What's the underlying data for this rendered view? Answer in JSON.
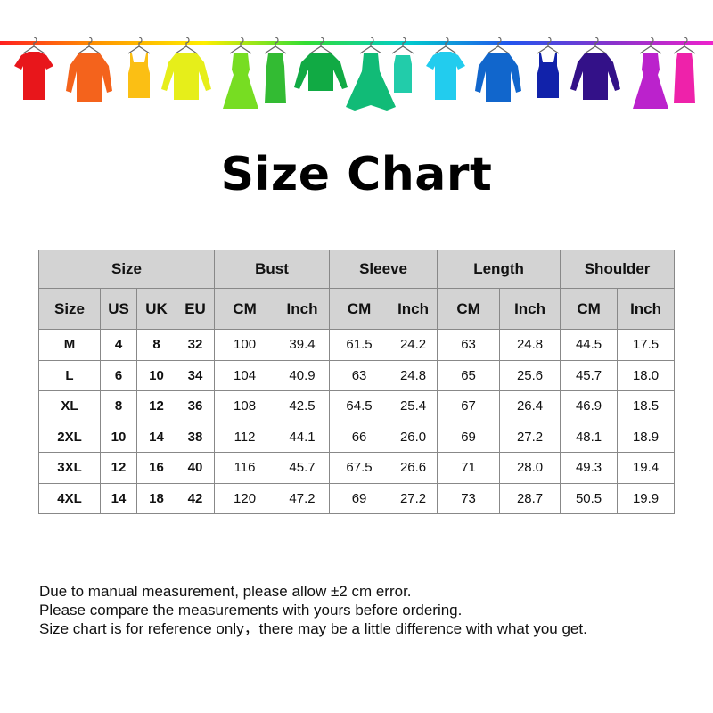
{
  "banner": {
    "line_colors": [
      "#ff2020",
      "#ff9900",
      "#ffee00",
      "#33dd33",
      "#00cccc",
      "#2255ee",
      "#8833cc",
      "#ee22cc"
    ],
    "garments": [
      {
        "type": "tshirt",
        "color": "#e8161b"
      },
      {
        "type": "jacket",
        "color": "#f4631c"
      },
      {
        "type": "tank",
        "color": "#fbbf14"
      },
      {
        "type": "sweater",
        "color": "#e6ee1a"
      },
      {
        "type": "dress",
        "color": "#77dd22"
      },
      {
        "type": "tankdress",
        "color": "#33bb33"
      },
      {
        "type": "longsleeve",
        "color": "#11aa44"
      },
      {
        "type": "gown",
        "color": "#11bb77"
      },
      {
        "type": "top",
        "color": "#22ccaa"
      },
      {
        "type": "tshirt",
        "color": "#22ccee"
      },
      {
        "type": "jacket",
        "color": "#1166cc"
      },
      {
        "type": "tank",
        "color": "#1122aa"
      },
      {
        "type": "sweater",
        "color": "#331188"
      },
      {
        "type": "dress",
        "color": "#bb22cc"
      },
      {
        "type": "tankdress",
        "color": "#ee22aa"
      }
    ]
  },
  "title": "Size Chart",
  "table": {
    "groups": [
      {
        "label": "Size",
        "span": 4
      },
      {
        "label": "Bust",
        "span": 2
      },
      {
        "label": "Sleeve",
        "span": 2
      },
      {
        "label": "Length",
        "span": 2
      },
      {
        "label": "Shoulder",
        "span": 2
      }
    ],
    "columns": [
      "Size",
      "US",
      "UK",
      "EU",
      "CM",
      "Inch",
      "CM",
      "Inch",
      "CM",
      "Inch",
      "CM",
      "Inch"
    ],
    "rows": [
      [
        "M",
        "4",
        "8",
        "32",
        "100",
        "39.4",
        "61.5",
        "24.2",
        "63",
        "24.8",
        "44.5",
        "17.5"
      ],
      [
        "L",
        "6",
        "10",
        "34",
        "104",
        "40.9",
        "63",
        "24.8",
        "65",
        "25.6",
        "45.7",
        "18.0"
      ],
      [
        "XL",
        "8",
        "12",
        "36",
        "108",
        "42.5",
        "64.5",
        "25.4",
        "67",
        "26.4",
        "46.9",
        "18.5"
      ],
      [
        "2XL",
        "10",
        "14",
        "38",
        "112",
        "44.1",
        "66",
        "26.0",
        "69",
        "27.2",
        "48.1",
        "18.9"
      ],
      [
        "3XL",
        "12",
        "16",
        "40",
        "116",
        "45.7",
        "67.5",
        "26.6",
        "71",
        "28.0",
        "49.3",
        "19.4"
      ],
      [
        "4XL",
        "14",
        "18",
        "42",
        "120",
        "47.2",
        "69",
        "27.2",
        "73",
        "28.7",
        "50.5",
        "19.9"
      ]
    ]
  },
  "notes": [
    "Due to manual measurement, please allow ±2 cm error.",
    "Please compare the measurements with yours before ordering.",
    "Size chart is for reference only，there may be a little difference with what you get."
  ]
}
